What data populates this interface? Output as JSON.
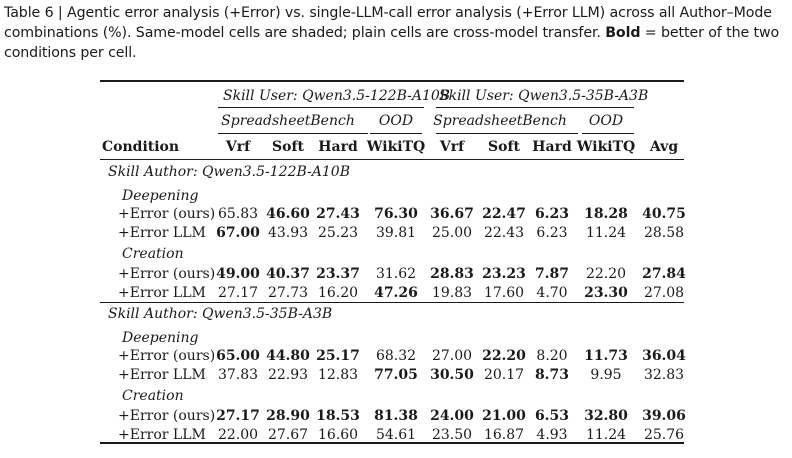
{
  "caption": {
    "prefix": "Table 6 | Agentic error analysis (+Error) vs. single-LLM-call error analysis (+Error LLM) across all Author–Mode combinations (%). Same-model cells are shaded; plain cells are cross-model transfer. ",
    "bold": "Bold",
    "suffix": " = better of the two conditions per cell."
  },
  "header": {
    "user_groups": [
      "Skill User: Qwen3.5-122B-A10B",
      "Skill User: Qwen3.5-35B-A3B"
    ],
    "benchmarks": [
      "SpreadsheetBench",
      "OOD",
      "SpreadsheetBench",
      "OOD"
    ],
    "columns": [
      "Condition",
      "Vrf",
      "Soft",
      "Hard",
      "WikiTQ",
      "Vrf",
      "Soft",
      "Hard",
      "WikiTQ",
      "Avg"
    ]
  },
  "sections": [
    {
      "author": "Skill Author: Qwen3.5-122B-A10B",
      "modes": [
        {
          "mode": "Deepening",
          "rows": [
            {
              "condition": "+Error (ours)",
              "values": [
                "65.83",
                "46.60",
                "27.43",
                "76.30",
                "36.67",
                "22.47",
                "6.23",
                "18.28",
                "40.75"
              ],
              "bold": [
                false,
                true,
                true,
                true,
                true,
                true,
                true,
                true,
                true
              ]
            },
            {
              "condition": "+Error LLM",
              "values": [
                "67.00",
                "43.93",
                "25.23",
                "39.81",
                "25.00",
                "22.43",
                "6.23",
                "11.24",
                "28.58"
              ],
              "bold": [
                true,
                false,
                false,
                false,
                false,
                false,
                false,
                false,
                false
              ]
            }
          ]
        },
        {
          "mode": "Creation",
          "rows": [
            {
              "condition": "+Error (ours)",
              "values": [
                "49.00",
                "40.37",
                "23.37",
                "31.62",
                "28.83",
                "23.23",
                "7.87",
                "22.20",
                "27.84"
              ],
              "bold": [
                true,
                true,
                true,
                false,
                true,
                true,
                true,
                false,
                true
              ]
            },
            {
              "condition": "+Error LLM",
              "values": [
                "27.17",
                "27.73",
                "16.20",
                "47.26",
                "19.83",
                "17.60",
                "4.70",
                "23.30",
                "27.08"
              ],
              "bold": [
                false,
                false,
                false,
                true,
                false,
                false,
                false,
                true,
                false
              ]
            }
          ]
        }
      ]
    },
    {
      "author": "Skill Author: Qwen3.5-35B-A3B",
      "modes": [
        {
          "mode": "Deepening",
          "rows": [
            {
              "condition": "+Error (ours)",
              "values": [
                "65.00",
                "44.80",
                "25.17",
                "68.32",
                "27.00",
                "22.20",
                "8.20",
                "11.73",
                "36.04"
              ],
              "bold": [
                true,
                true,
                true,
                false,
                false,
                true,
                false,
                true,
                true
              ]
            },
            {
              "condition": "+Error LLM",
              "values": [
                "37.83",
                "22.93",
                "12.83",
                "77.05",
                "30.50",
                "20.17",
                "8.73",
                "9.95",
                "32.83"
              ],
              "bold": [
                false,
                false,
                false,
                true,
                true,
                false,
                true,
                false,
                false
              ]
            }
          ]
        },
        {
          "mode": "Creation",
          "rows": [
            {
              "condition": "+Error (ours)",
              "values": [
                "27.17",
                "28.90",
                "18.53",
                "81.38",
                "24.00",
                "21.00",
                "6.53",
                "32.80",
                "39.06"
              ],
              "bold": [
                true,
                true,
                true,
                true,
                true,
                true,
                true,
                true,
                true
              ]
            },
            {
              "condition": "+Error LLM",
              "values": [
                "22.00",
                "27.67",
                "16.60",
                "54.61",
                "23.50",
                "16.87",
                "4.93",
                "11.24",
                "25.76"
              ],
              "bold": [
                false,
                false,
                false,
                false,
                false,
                false,
                false,
                false,
                false
              ]
            }
          ]
        }
      ]
    }
  ]
}
